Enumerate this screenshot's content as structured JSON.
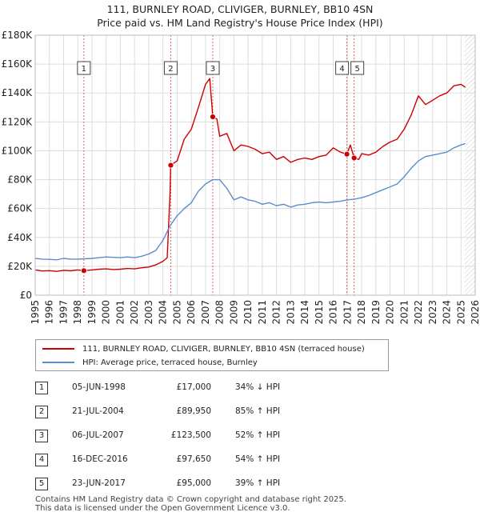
{
  "title_line1": "111, BURNLEY ROAD, CLIVIGER, BURNLEY, BB10 4SN",
  "title_line2": "Price paid vs. HM Land Registry's House Price Index (HPI)",
  "chart_data": {
    "type": "line",
    "ylim": [
      0,
      180000
    ],
    "xlim": [
      1995,
      2026
    ],
    "y_ticks": [
      0,
      20000,
      40000,
      60000,
      80000,
      100000,
      120000,
      140000,
      160000,
      180000
    ],
    "y_tick_labels": [
      "£0",
      "£20K",
      "£40K",
      "£60K",
      "£80K",
      "£100K",
      "£120K",
      "£140K",
      "£160K",
      "£180K"
    ],
    "x_ticks": [
      1995,
      1996,
      1997,
      1998,
      1999,
      2000,
      2001,
      2002,
      2003,
      2004,
      2005,
      2006,
      2007,
      2008,
      2009,
      2010,
      2011,
      2012,
      2013,
      2014,
      2015,
      2016,
      2017,
      2018,
      2019,
      2020,
      2021,
      2022,
      2023,
      2024,
      2025,
      2026
    ],
    "grid": true,
    "series": [
      {
        "name": "111, BURNLEY ROAD, CLIVIGER, BURNLEY, BB10 4SN (terraced house)",
        "color": "#cc0000",
        "x": [
          1995.0,
          1995.5,
          1996.0,
          1996.5,
          1997.0,
          1997.5,
          1998.0,
          1998.43,
          1999.0,
          1999.5,
          2000.0,
          2000.5,
          2001.0,
          2001.5,
          2002.0,
          2002.5,
          2003.0,
          2003.5,
          2004.0,
          2004.3,
          2004.5,
          2004.55,
          2005.0,
          2005.5,
          2006.0,
          2006.5,
          2007.0,
          2007.3,
          2007.51,
          2007.8,
          2008.0,
          2008.5,
          2009.0,
          2009.5,
          2010.0,
          2010.5,
          2011.0,
          2011.5,
          2012.0,
          2012.5,
          2013.0,
          2013.5,
          2014.0,
          2014.5,
          2015.0,
          2015.5,
          2016.0,
          2016.5,
          2016.96,
          2017.2,
          2017.47,
          2017.8,
          2018.0,
          2018.5,
          2019.0,
          2019.5,
          2020.0,
          2020.5,
          2021.0,
          2021.5,
          2022.0,
          2022.5,
          2023.0,
          2023.5,
          2024.0,
          2024.5,
          2025.0,
          2025.3
        ],
        "values": [
          17500,
          16800,
          17000,
          16500,
          17200,
          16900,
          17500,
          17000,
          17500,
          18000,
          18200,
          17800,
          18000,
          18500,
          18200,
          19000,
          19500,
          21000,
          23500,
          26000,
          70000,
          89950,
          93000,
          108000,
          115000,
          130000,
          146000,
          150000,
          123500,
          122000,
          110000,
          112000,
          100000,
          104000,
          103000,
          101000,
          98000,
          99000,
          94000,
          96000,
          92000,
          94000,
          95000,
          94000,
          96000,
          97000,
          102000,
          99000,
          97650,
          104000,
          95000,
          94000,
          98000,
          97000,
          99000,
          103000,
          106000,
          108000,
          115000,
          125000,
          138000,
          132000,
          135000,
          138000,
          140000,
          145000,
          146000,
          144000
        ]
      },
      {
        "name": "HPI: Average price, terraced house, Burnley",
        "color": "#5b8ec7",
        "x": [
          1995.0,
          1995.5,
          1996.0,
          1996.5,
          1997.0,
          1997.5,
          1998.0,
          1998.5,
          1999.0,
          1999.5,
          2000.0,
          2000.5,
          2001.0,
          2001.5,
          2002.0,
          2002.5,
          2003.0,
          2003.5,
          2004.0,
          2004.5,
          2005.0,
          2005.5,
          2006.0,
          2006.5,
          2007.0,
          2007.5,
          2008.0,
          2008.5,
          2009.0,
          2009.5,
          2010.0,
          2010.5,
          2011.0,
          2011.5,
          2012.0,
          2012.5,
          2013.0,
          2013.5,
          2014.0,
          2014.5,
          2015.0,
          2015.5,
          2016.0,
          2016.5,
          2017.0,
          2017.5,
          2018.0,
          2018.5,
          2019.0,
          2019.5,
          2020.0,
          2020.5,
          2021.0,
          2021.5,
          2022.0,
          2022.5,
          2023.0,
          2023.5,
          2024.0,
          2024.5,
          2025.0,
          2025.3
        ],
        "values": [
          25500,
          25000,
          24800,
          24500,
          25500,
          25000,
          25000,
          25200,
          25500,
          26000,
          26500,
          26200,
          26000,
          26500,
          26000,
          27000,
          28500,
          31000,
          38000,
          48000,
          55000,
          60000,
          64000,
          72000,
          77000,
          80000,
          80000,
          74000,
          66000,
          68000,
          66000,
          65000,
          63000,
          64000,
          62000,
          63000,
          61000,
          62500,
          63000,
          64000,
          64500,
          64000,
          64500,
          65000,
          66000,
          66500,
          67500,
          69000,
          71000,
          73000,
          75000,
          77000,
          82000,
          88000,
          93000,
          96000,
          97000,
          98000,
          99000,
          102000,
          104000,
          105000
        ]
      }
    ],
    "sales": [
      {
        "label": "1",
        "x": 1998.43,
        "price": 17000
      },
      {
        "label": "2",
        "x": 2004.55,
        "price": 89950
      },
      {
        "label": "3",
        "x": 2007.51,
        "price": 123500
      },
      {
        "label": "4",
        "x": 2016.96,
        "price": 97650
      },
      {
        "label": "5",
        "x": 2017.47,
        "price": 95000
      }
    ],
    "forecast_start": 2025.25
  },
  "legend": {
    "property": "111, BURNLEY ROAD, CLIVIGER, BURNLEY, BB10 4SN (terraced house)",
    "hpi": "HPI: Average price, terraced house, Burnley"
  },
  "transactions": [
    {
      "num": "1",
      "date": "05-JUN-1998",
      "price": "£17,000",
      "hpi": "34% ↓ HPI"
    },
    {
      "num": "2",
      "date": "21-JUL-2004",
      "price": "£89,950",
      "hpi": "85% ↑ HPI"
    },
    {
      "num": "3",
      "date": "06-JUL-2007",
      "price": "£123,500",
      "hpi": "52% ↑ HPI"
    },
    {
      "num": "4",
      "date": "16-DEC-2016",
      "price": "£97,650",
      "hpi": "54% ↑ HPI"
    },
    {
      "num": "5",
      "date": "23-JUN-2017",
      "price": "£95,000",
      "hpi": "39% ↑ HPI"
    }
  ],
  "footer": {
    "line1": "Contains HM Land Registry data © Crown copyright and database right 2025.",
    "line2": "This data is licensed under the Open Government Licence v3.0."
  }
}
